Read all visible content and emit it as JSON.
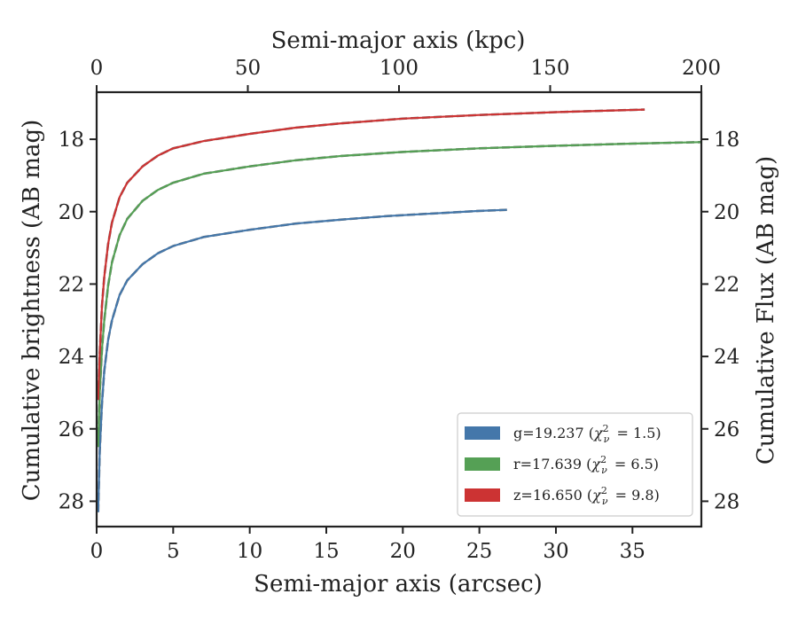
{
  "chart_data": {
    "type": "line",
    "xlabel_bottom": "Semi-major axis (arcsec)",
    "xlabel_top": "Semi-major axis (kpc)",
    "ylabel_left": "Cumulative brightness (AB mag)",
    "ylabel_right": "Cumulative Flux (AB mag)",
    "xlim_bottom": [
      0,
      39.5
    ],
    "xlim_top": [
      0,
      200
    ],
    "ylim": [
      28.7,
      16.7
    ],
    "y_inverted": true,
    "xticks_bottom": [
      0,
      5,
      10,
      15,
      20,
      25,
      30,
      35
    ],
    "xticks_top": [
      0,
      50,
      100,
      150,
      200
    ],
    "yticks": [
      18,
      20,
      22,
      24,
      26,
      28
    ],
    "grid": false,
    "legend_position": "lower-right",
    "series": [
      {
        "name": "g=19.237",
        "chi2": "1.5",
        "color": "#4477AA",
        "x": [
          0.1,
          0.2,
          0.35,
          0.5,
          0.75,
          1.0,
          1.5,
          2.0,
          3.0,
          4.0,
          5.0,
          7.0,
          10.0,
          13.0,
          16.0,
          19.0,
          22.0,
          25.0,
          26.8
        ],
        "y": [
          28.3,
          26.6,
          25.3,
          24.4,
          23.55,
          23.0,
          22.3,
          21.9,
          21.45,
          21.15,
          20.95,
          20.7,
          20.5,
          20.33,
          20.22,
          20.12,
          20.05,
          19.98,
          19.95
        ]
      },
      {
        "name": "r=17.639",
        "chi2": "6.5",
        "color": "#55A055",
        "x": [
          0.1,
          0.2,
          0.35,
          0.5,
          0.75,
          1.0,
          1.5,
          2.0,
          3.0,
          4.0,
          5.0,
          7.0,
          10.0,
          13.0,
          16.0,
          20.0,
          25.0,
          30.0,
          35.0,
          39.5
        ],
        "y": [
          26.5,
          25.0,
          23.8,
          23.0,
          22.05,
          21.4,
          20.65,
          20.2,
          19.7,
          19.4,
          19.2,
          18.95,
          18.75,
          18.58,
          18.46,
          18.35,
          18.25,
          18.18,
          18.12,
          18.08
        ]
      },
      {
        "name": "z=16.650",
        "chi2": "9.8",
        "color": "#CC3333",
        "x": [
          0.1,
          0.2,
          0.35,
          0.5,
          0.75,
          1.0,
          1.5,
          2.0,
          3.0,
          4.0,
          5.0,
          7.0,
          10.0,
          13.0,
          16.0,
          20.0,
          25.0,
          30.0,
          35.0,
          35.8
        ],
        "y": [
          25.2,
          23.9,
          22.6,
          21.8,
          20.9,
          20.3,
          19.6,
          19.2,
          18.75,
          18.45,
          18.25,
          18.05,
          17.85,
          17.68,
          17.56,
          17.43,
          17.33,
          17.25,
          17.19,
          17.18
        ]
      }
    ]
  }
}
